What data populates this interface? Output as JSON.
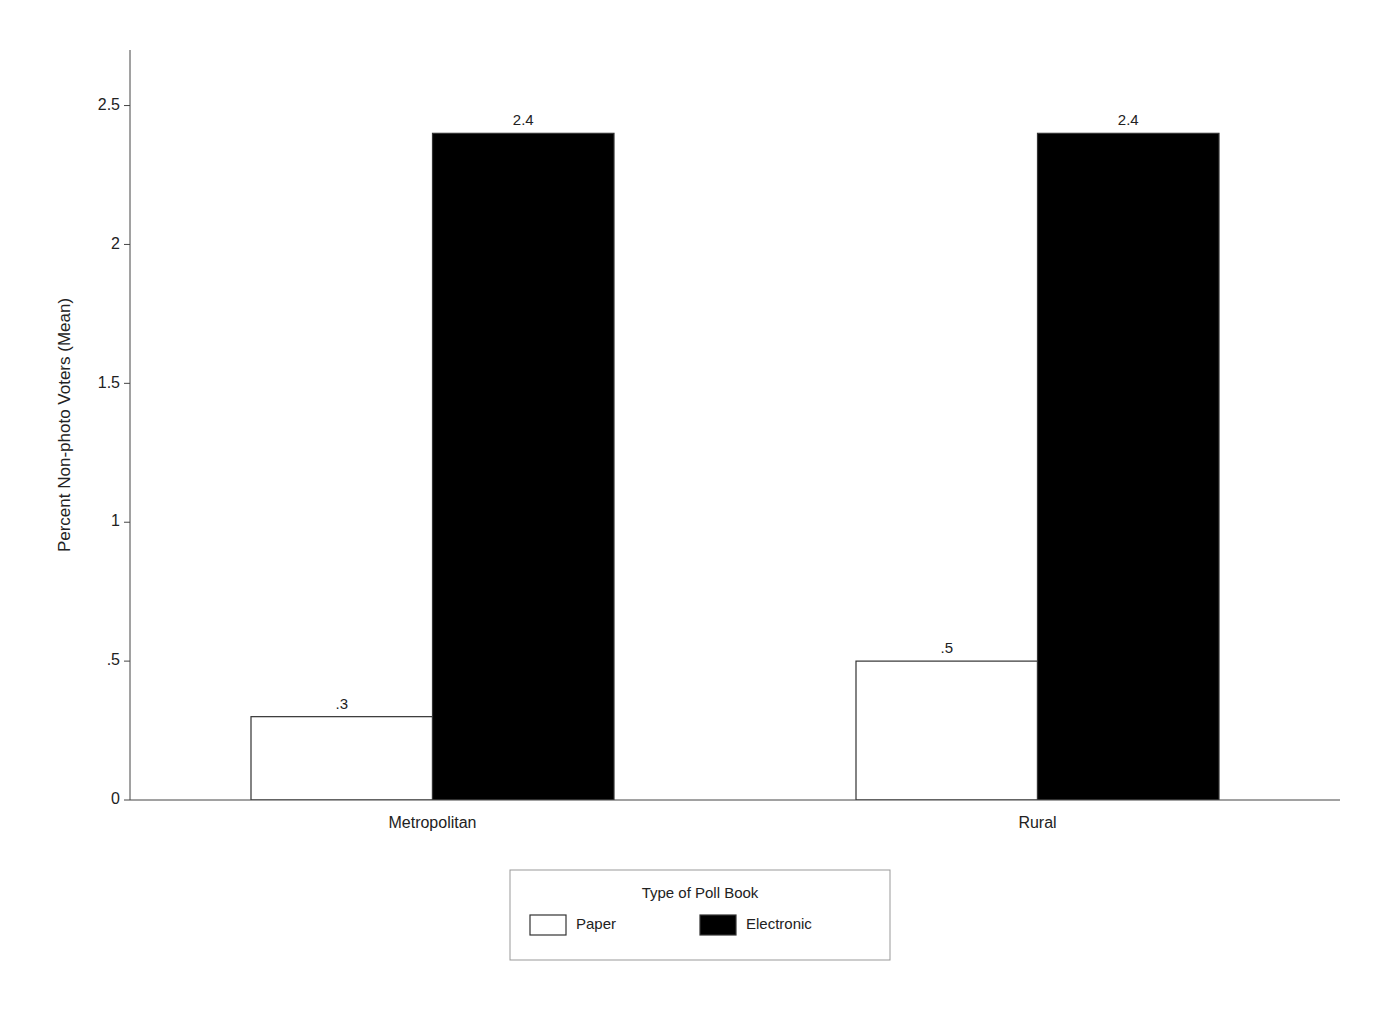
{
  "chart_data": {
    "type": "bar",
    "categories": [
      "Metropolitan",
      "Rural"
    ],
    "series": [
      {
        "name": "Paper",
        "color": "#ffffff",
        "values": [
          0.3,
          0.5
        ],
        "value_labels": [
          ".3",
          ".5"
        ]
      },
      {
        "name": "Electronic",
        "color": "#000000",
        "values": [
          2.4,
          2.4
        ]
      }
    ],
    "ylabel": "Percent Non-photo Voters (Mean)",
    "ylim": [
      0,
      2.7
    ],
    "yticks": [
      0,
      {
        "value": 0.5,
        "label": ".5"
      },
      1,
      1.5,
      2,
      2.5
    ],
    "data_labels": true,
    "grid": false,
    "legend": "bottom",
    "legend_title": "Type of Poll Book"
  }
}
